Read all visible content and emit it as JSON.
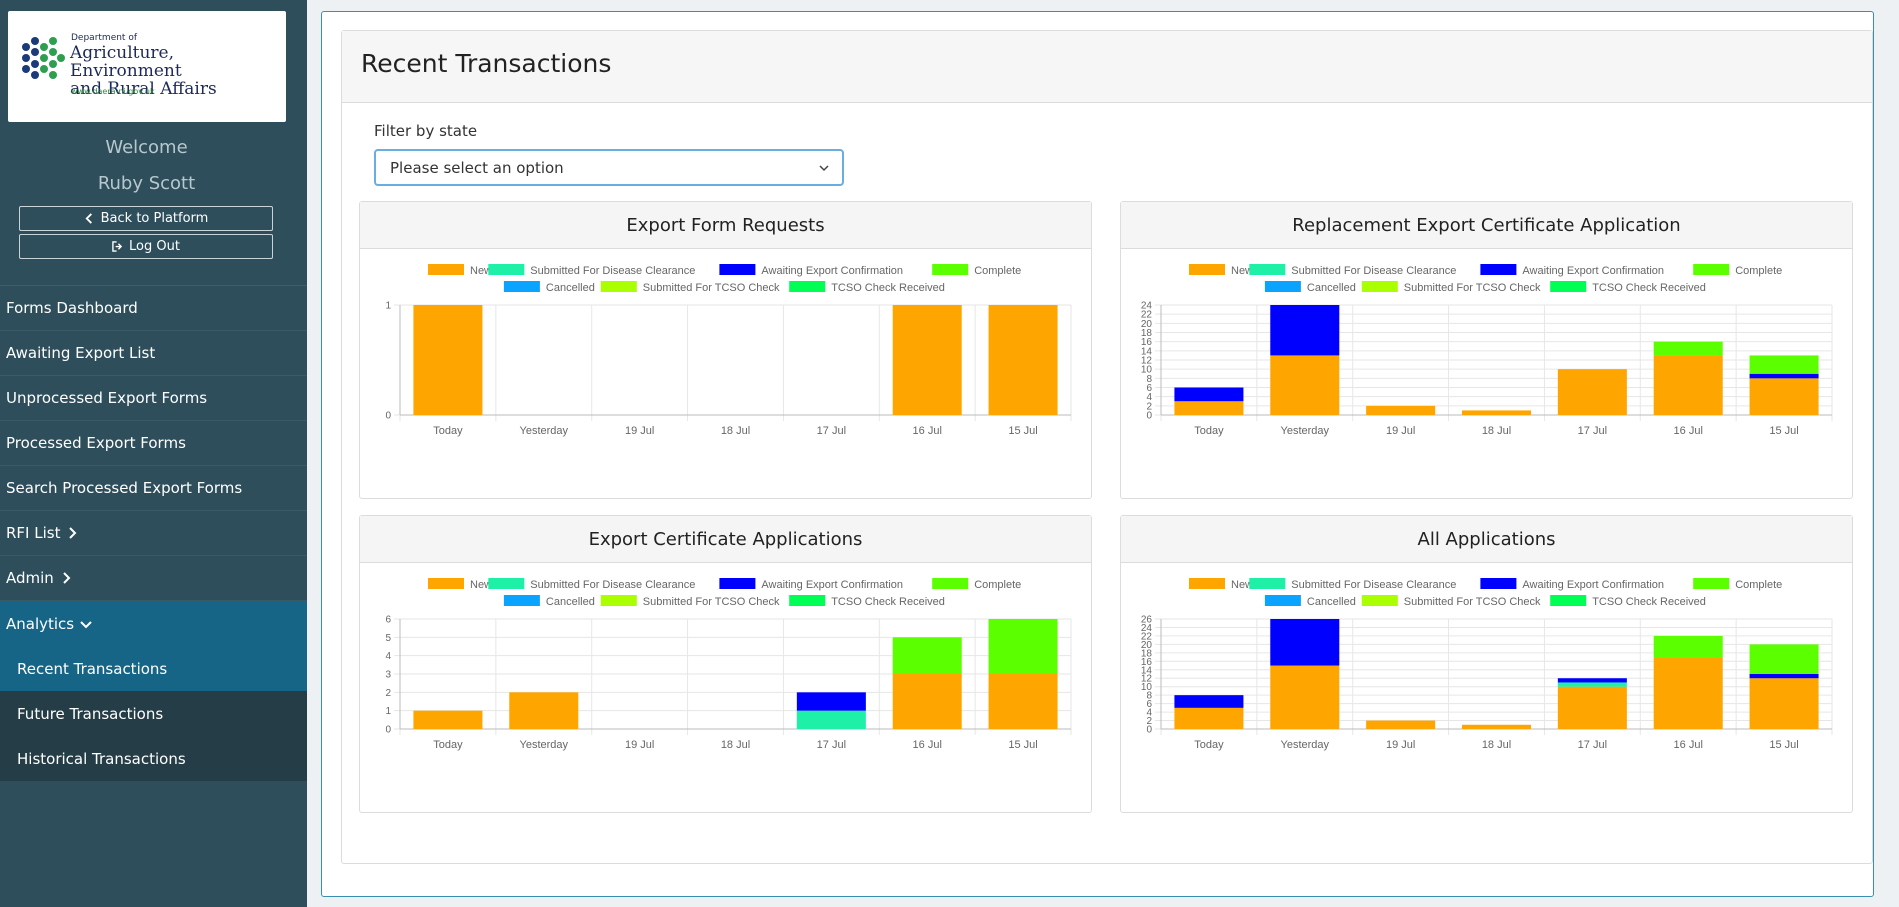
{
  "sidebar": {
    "logo": {
      "dept": "Department of",
      "name_line1": "Agriculture, Environment",
      "name_line2": "and Rural Affairs",
      "url": "www.daera-ni.gov.uk"
    },
    "welcome": "Welcome",
    "user_name": "Ruby Scott",
    "back_label": "Back to Platform",
    "logout_label": "Log Out",
    "nav": {
      "forms_dashboard": "Forms Dashboard",
      "awaiting_export_list": "Awaiting Export List",
      "unprocessed_export_forms": "Unprocessed Export Forms",
      "processed_export_forms": "Processed Export Forms",
      "search_processed_export_forms": "Search Processed Export Forms",
      "rfi_list": "RFI List",
      "admin": "Admin",
      "analytics": "Analytics",
      "recent_transactions": "Recent Transactions",
      "future_transactions": "Future Transactions",
      "historical_transactions": "Historical Transactions"
    }
  },
  "main": {
    "title": "Recent Transactions",
    "filter_label": "Filter by state",
    "filter_value": "Please select an option"
  },
  "colors": {
    "New": "#ffa500",
    "Submitted For Disease Clearance": "#1ef0a8",
    "Awaiting Export Confirmation": "#0000ff",
    "Complete": "#5cff00",
    "Cancelled": "#0aa3ff",
    "Submitted For TCSO Check": "#aaff00",
    "TCSO Check Received": "#00ff55"
  },
  "chart_data": [
    {
      "type": "bar",
      "stacked": true,
      "title": "Export Form Requests",
      "categories": [
        "Today",
        "Yesterday",
        "19 Jul",
        "18 Jul",
        "17 Jul",
        "16 Jul",
        "15 Jul"
      ],
      "ylim": [
        0,
        1
      ],
      "yticks": [
        0,
        1
      ],
      "series": [
        {
          "name": "New",
          "values": [
            1,
            0,
            0,
            0,
            0,
            1,
            1
          ]
        },
        {
          "name": "Submitted For Disease Clearance",
          "values": [
            0,
            0,
            0,
            0,
            0,
            0,
            0
          ]
        },
        {
          "name": "Awaiting Export Confirmation",
          "values": [
            0,
            0,
            0,
            0,
            0,
            0,
            0
          ]
        },
        {
          "name": "Complete",
          "values": [
            0,
            0,
            0,
            0,
            0,
            0,
            0
          ]
        },
        {
          "name": "Cancelled",
          "values": [
            0,
            0,
            0,
            0,
            0,
            0,
            0
          ]
        },
        {
          "name": "Submitted For TCSO Check",
          "values": [
            0,
            0,
            0,
            0,
            0,
            0,
            0
          ]
        },
        {
          "name": "TCSO Check Received",
          "values": [
            0,
            0,
            0,
            0,
            0,
            0,
            0
          ]
        }
      ]
    },
    {
      "type": "bar",
      "stacked": true,
      "title": "Replacement Export Certificate Application",
      "categories": [
        "Today",
        "Yesterday",
        "19 Jul",
        "18 Jul",
        "17 Jul",
        "16 Jul",
        "15 Jul"
      ],
      "ylim": [
        0,
        24
      ],
      "yticks": [
        0,
        2,
        4,
        6,
        8,
        10,
        12,
        14,
        16,
        18,
        20,
        22,
        24
      ],
      "series": [
        {
          "name": "New",
          "values": [
            3,
            13,
            2,
            1,
            10,
            13,
            8
          ]
        },
        {
          "name": "Submitted For Disease Clearance",
          "values": [
            0,
            0,
            0,
            0,
            0,
            0,
            0
          ]
        },
        {
          "name": "Awaiting Export Confirmation",
          "values": [
            3,
            11,
            0,
            0,
            0,
            0,
            1
          ]
        },
        {
          "name": "Complete",
          "values": [
            0,
            0,
            0,
            0,
            0,
            3,
            4
          ]
        },
        {
          "name": "Cancelled",
          "values": [
            0,
            0,
            0,
            0,
            0,
            0,
            0
          ]
        },
        {
          "name": "Submitted For TCSO Check",
          "values": [
            0,
            0,
            0,
            0,
            0,
            0,
            0
          ]
        },
        {
          "name": "TCSO Check Received",
          "values": [
            0,
            0,
            0,
            0,
            0,
            0,
            0
          ]
        }
      ]
    },
    {
      "type": "bar",
      "stacked": true,
      "title": "Export Certificate Applications",
      "categories": [
        "Today",
        "Yesterday",
        "19 Jul",
        "18 Jul",
        "17 Jul",
        "16 Jul",
        "15 Jul"
      ],
      "ylim": [
        0,
        6
      ],
      "yticks": [
        0,
        1,
        2,
        3,
        4,
        5,
        6
      ],
      "series": [
        {
          "name": "New",
          "values": [
            1,
            2,
            0,
            0,
            0,
            3,
            3
          ]
        },
        {
          "name": "Submitted For Disease Clearance",
          "values": [
            0,
            0,
            0,
            0,
            1,
            0,
            0
          ]
        },
        {
          "name": "Awaiting Export Confirmation",
          "values": [
            0,
            0,
            0,
            0,
            1,
            0,
            0
          ]
        },
        {
          "name": "Complete",
          "values": [
            0,
            0,
            0,
            0,
            0,
            2,
            3
          ]
        },
        {
          "name": "Cancelled",
          "values": [
            0,
            0,
            0,
            0,
            0,
            0,
            0
          ]
        },
        {
          "name": "Submitted For TCSO Check",
          "values": [
            0,
            0,
            0,
            0,
            0,
            0,
            0
          ]
        },
        {
          "name": "TCSO Check Received",
          "values": [
            0,
            0,
            0,
            0,
            0,
            0,
            0
          ]
        }
      ]
    },
    {
      "type": "bar",
      "stacked": true,
      "title": "All Applications",
      "categories": [
        "Today",
        "Yesterday",
        "19 Jul",
        "18 Jul",
        "17 Jul",
        "16 Jul",
        "15 Jul"
      ],
      "ylim": [
        0,
        26
      ],
      "yticks": [
        0,
        2,
        4,
        6,
        8,
        10,
        12,
        14,
        16,
        18,
        20,
        22,
        24,
        26
      ],
      "series": [
        {
          "name": "New",
          "values": [
            5,
            15,
            2,
            1,
            10,
            17,
            12
          ]
        },
        {
          "name": "Submitted For Disease Clearance",
          "values": [
            0,
            0,
            0,
            0,
            1,
            0,
            0
          ]
        },
        {
          "name": "Awaiting Export Confirmation",
          "values": [
            3,
            11,
            0,
            0,
            1,
            0,
            1
          ]
        },
        {
          "name": "Complete",
          "values": [
            0,
            0,
            0,
            0,
            0,
            5,
            7
          ]
        },
        {
          "name": "Cancelled",
          "values": [
            0,
            0,
            0,
            0,
            0,
            0,
            0
          ]
        },
        {
          "name": "Submitted For TCSO Check",
          "values": [
            0,
            0,
            0,
            0,
            0,
            0,
            0
          ]
        },
        {
          "name": "TCSO Check Received",
          "values": [
            0,
            0,
            0,
            0,
            0,
            0,
            0
          ]
        }
      ]
    }
  ]
}
